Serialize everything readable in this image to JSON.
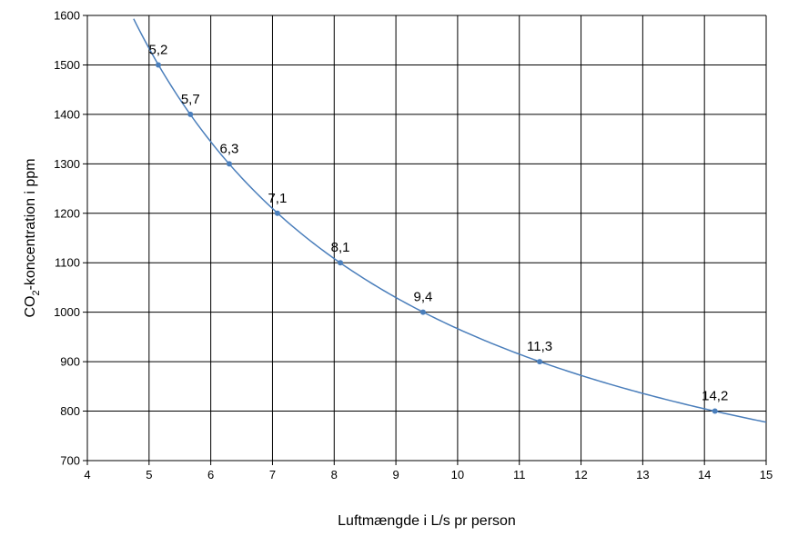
{
  "chart_data": {
    "type": "line",
    "title": "",
    "xlabel": "Luftmængde i L/s pr person",
    "ylabel_prefix": "CO",
    "ylabel_subscript": "2",
    "ylabel_suffix": "-koncentration i ppm",
    "xlim": [
      4,
      15
    ],
    "ylim": [
      700,
      1600
    ],
    "xticks": [
      4,
      5,
      6,
      7,
      8,
      9,
      10,
      11,
      12,
      13,
      14,
      15
    ],
    "yticks": [
      700,
      800,
      900,
      1000,
      1100,
      1200,
      1300,
      1400,
      1500,
      1600
    ],
    "grid": true,
    "legend": "none",
    "line_color": "#4a7ebb",
    "grid_color": "#000000",
    "series": [
      {
        "points": [
          {
            "x": 5.15,
            "y": 1500,
            "label": "5,2"
          },
          {
            "x": 5.67,
            "y": 1400,
            "label": "5,7"
          },
          {
            "x": 6.3,
            "y": 1300,
            "label": "6,3"
          },
          {
            "x": 7.08,
            "y": 1200,
            "label": "7,1"
          },
          {
            "x": 8.1,
            "y": 1100,
            "label": "8,1"
          },
          {
            "x": 9.44,
            "y": 1000,
            "label": "9,4"
          },
          {
            "x": 11.33,
            "y": 900,
            "label": "11,3"
          },
          {
            "x": 14.17,
            "y": 800,
            "label": "14,2"
          }
        ],
        "curve": [
          {
            "x": 4.75,
            "y": 1600
          },
          {
            "x": 15.0,
            "y": 779
          }
        ]
      }
    ]
  }
}
